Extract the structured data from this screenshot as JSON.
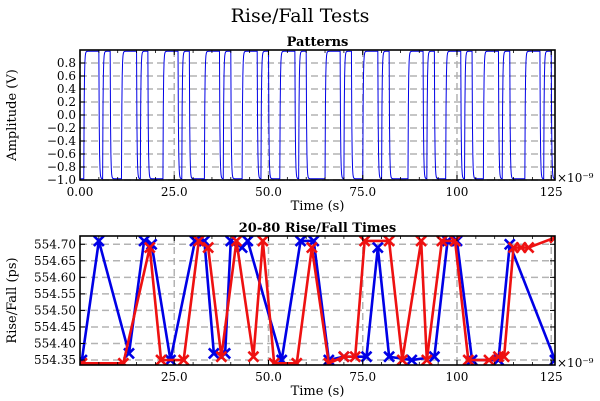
{
  "figure_title": "Rise/Fall Tests",
  "colors": {
    "blue": "#0000e6",
    "red": "#ee1111",
    "grid": "#b3b3b3"
  },
  "chart_data": [
    {
      "type": "line",
      "title": "Patterns",
      "xlabel": "Time (s)",
      "ylabel": "Amplitude (V)",
      "x_multiplier": "×10⁻⁹",
      "xlim": [
        0,
        126
      ],
      "ylim": [
        -1.0,
        1.0
      ],
      "grid": true,
      "xticks": [
        0,
        25,
        50,
        75,
        100,
        125
      ],
      "xtick_labels": [
        "0.00",
        "25.0",
        "50.0",
        "75.0",
        "100",
        "125"
      ],
      "yticks": [
        0.8,
        0.6,
        0.4,
        0.2,
        0.0,
        -0.2,
        -0.4,
        -0.6,
        -0.8,
        -1.0
      ],
      "ytick_labels": [
        "0.8",
        "0.6",
        "0.4",
        "0.2",
        "0.0",
        "−0.2",
        "−0.4",
        "−0.6",
        "−0.8",
        "−1.0"
      ],
      "series": [
        {
          "color": "blue",
          "bit_period": 1.0,
          "bits": "0111101100011110110000111101100001111011000111101100011110110000011110110001111011000001111011000111101100011110110000111101100"
        }
      ]
    },
    {
      "type": "line",
      "title": "20-80 Rise/Fall Times",
      "xlabel": "Time (s)",
      "ylabel": "Rise/Fall (ps)",
      "x_multiplier": "×10⁻⁹",
      "xlim": [
        0,
        126
      ],
      "ylim": [
        554.335,
        554.725
      ],
      "grid": true,
      "xticks": [
        25,
        50,
        75,
        100,
        125
      ],
      "xtick_labels": [
        "25.0",
        "50.0",
        "75.0",
        "100",
        "125"
      ],
      "yticks": [
        554.7,
        554.65,
        554.6,
        554.55,
        554.5,
        554.45,
        554.4,
        554.35
      ],
      "ytick_labels": [
        "554.70",
        "554.65",
        "554.60",
        "554.55",
        "554.50",
        "554.45",
        "554.40",
        "554.35"
      ],
      "series": [
        {
          "color": "blue",
          "x": [
            0.5,
            5.0,
            13.0,
            17.0,
            19.0,
            24.0,
            30.5,
            33.0,
            35.5,
            38.5,
            40.0,
            43.0,
            44.5,
            53.5,
            58.5,
            62.0,
            66.0,
            70.0,
            76.0,
            79.0,
            82.0,
            88.0,
            94.0,
            97.5,
            100.0,
            104.0,
            111.0,
            114.0,
            126.0
          ],
          "y": [
            554.35,
            554.71,
            554.37,
            554.71,
            554.7,
            554.35,
            554.71,
            554.71,
            554.37,
            554.37,
            554.71,
            554.69,
            554.71,
            554.35,
            554.71,
            554.71,
            554.35,
            554.36,
            554.36,
            554.69,
            554.36,
            554.35,
            554.36,
            554.71,
            554.71,
            554.35,
            554.35,
            554.7,
            554.35
          ]
        },
        {
          "color": "red",
          "x": [
            0.5,
            11.5,
            18.5,
            21.5,
            27.5,
            31.5,
            34.0,
            37.5,
            41.5,
            46.0,
            48.5,
            51.5,
            57.5,
            61.5,
            66.0,
            70.0,
            73.0,
            75.5,
            82.0,
            85.5,
            90.5,
            92.0,
            96.0,
            99.5,
            103.0,
            108.5,
            111.0,
            112.5,
            115.0,
            117.0,
            119.0,
            126.0
          ],
          "y": [
            554.34,
            554.34,
            554.69,
            554.35,
            554.35,
            554.71,
            554.69,
            554.36,
            554.71,
            554.36,
            554.71,
            554.34,
            554.34,
            554.69,
            554.34,
            554.36,
            554.36,
            554.71,
            554.71,
            554.35,
            554.71,
            554.35,
            554.71,
            554.71,
            554.35,
            554.35,
            554.36,
            554.36,
            554.69,
            554.69,
            554.69,
            554.72
          ]
        }
      ]
    }
  ]
}
